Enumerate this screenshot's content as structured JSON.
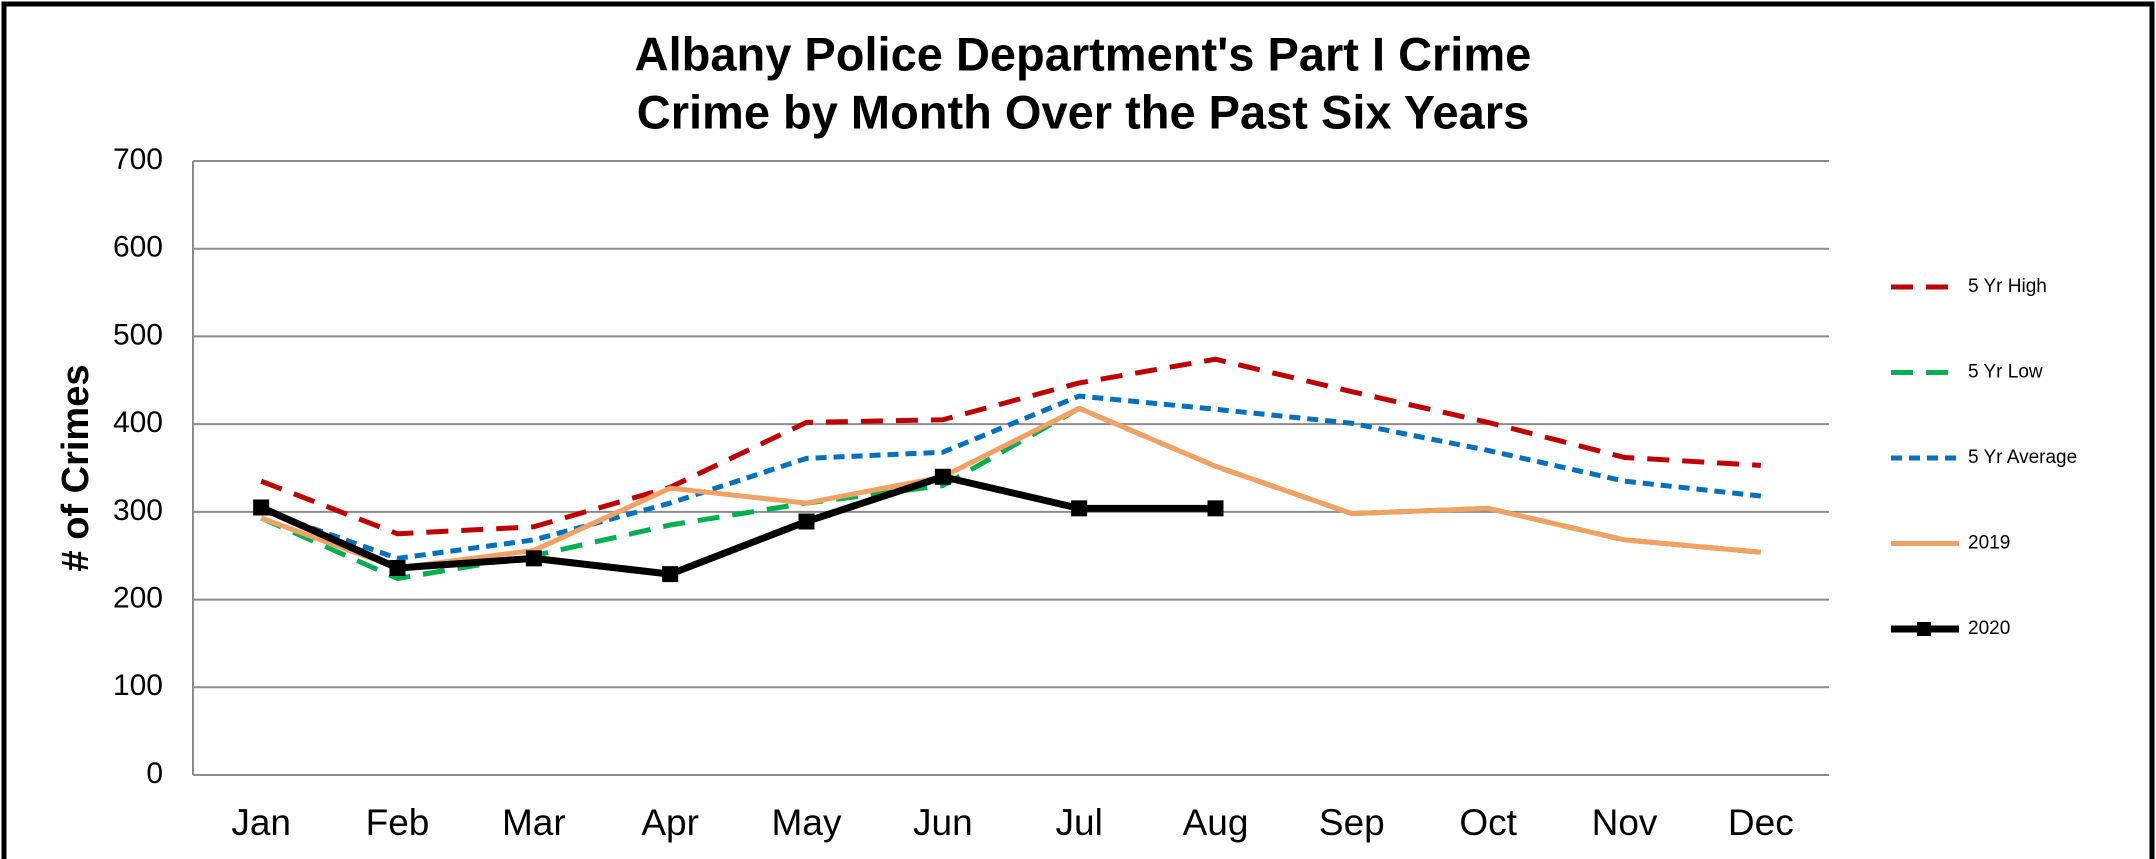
{
  "chart_data": {
    "type": "line",
    "title": "Albany Police Department's Part I Crime",
    "subtitle": "Crime by Month Over the Past Six Years",
    "y_label": "# of Crimes",
    "categories": [
      "Jan",
      "Feb",
      "Mar",
      "Apr",
      "May",
      "Jun",
      "Jul",
      "Aug",
      "Sep",
      "Oct",
      "Nov",
      "Dec"
    ],
    "series": [
      {
        "name": "5 Yr High",
        "color": "#c00000",
        "linestyle": "dashed",
        "values": [
          335,
          275,
          283,
          328,
          402,
          405,
          447,
          474,
          437,
          402,
          362,
          353
        ]
      },
      {
        "name": "5 Yr Low",
        "color": "#00b050",
        "linestyle": "dashed",
        "values": [
          293,
          224,
          250,
          285,
          310,
          330,
          418,
          352,
          298,
          304,
          268,
          254
        ]
      },
      {
        "name": "5 Yr Average",
        "color": "#0070c0",
        "linestyle": "dotted",
        "values": [
          302,
          247,
          268,
          310,
          361,
          368,
          432,
          417,
          401,
          370,
          335,
          318
        ]
      },
      {
        "name": "2019",
        "color": "#f2a165",
        "linestyle": "solid",
        "values": [
          293,
          236,
          256,
          327,
          310,
          340,
          418,
          352,
          298,
          304,
          268,
          254
        ]
      },
      {
        "name": "2020",
        "color": "#000000",
        "linestyle": "solid",
        "marker": "square",
        "values": [
          305,
          236,
          247,
          229,
          289,
          340,
          304,
          304,
          null,
          null,
          null,
          null
        ]
      }
    ],
    "ylim": [
      0,
      700
    ],
    "yticks": [
      0,
      100,
      200,
      300,
      400,
      500,
      600,
      700
    ],
    "grid": true,
    "legend": "right"
  }
}
